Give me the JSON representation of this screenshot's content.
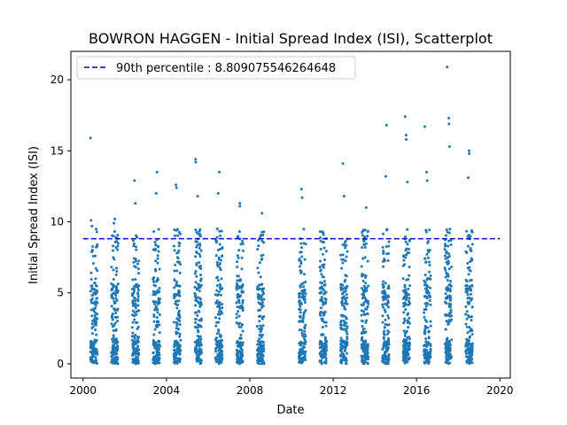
{
  "chart_data": {
    "type": "scatter",
    "title": "BOWRON HAGGEN - Initial Spread Index (ISI), Scatterplot",
    "xlabel": "Date",
    "ylabel": "Initial Spread Index (ISI)",
    "xlim": [
      "1999-06-01",
      "2020-07-01"
    ],
    "ylim": [
      -1.0,
      22.0
    ],
    "x_ticks": [
      "2000",
      "2004",
      "2008",
      "2012",
      "2016",
      "2020"
    ],
    "y_ticks": [
      "0",
      "5",
      "10",
      "15",
      "20"
    ],
    "legend": {
      "position": "top-left",
      "entries": [
        "90th percentile : 8.809075546264648"
      ]
    },
    "reference_line": {
      "name": "90th percentile : 8.809075546264648",
      "y": 8.809075546264648,
      "x_range": [
        "2000-01-01",
        "2020-01-01"
      ],
      "style": "dashed",
      "color": "#0000cc"
    },
    "series": [
      {
        "marker_color": "#1f77b4",
        "fire_seasons": [
          2000,
          2001,
          2002,
          2003,
          2004,
          2005,
          2006,
          2007,
          2008,
          2010,
          2011,
          2012,
          2013,
          2014,
          2015,
          2016,
          2017,
          2018
        ],
        "points": [
          {
            "x": "2000-05-10",
            "y": 15.9
          },
          {
            "x": "2000-05-20",
            "y": 10.1
          },
          {
            "x": "2000-06-05",
            "y": 9.7
          },
          {
            "x": "2001-07-10",
            "y": 10.2
          },
          {
            "x": "2001-06-25",
            "y": 9.9
          },
          {
            "x": "2002-06-20",
            "y": 12.9
          },
          {
            "x": "2002-07-05",
            "y": 11.3
          },
          {
            "x": "2003-07-20",
            "y": 13.5
          },
          {
            "x": "2003-07-05",
            "y": 12.0
          },
          {
            "x": "2004-06-15",
            "y": 12.6
          },
          {
            "x": "2004-06-25",
            "y": 12.4
          },
          {
            "x": "2005-05-25",
            "y": 14.4
          },
          {
            "x": "2005-05-28",
            "y": 14.2
          },
          {
            "x": "2005-07-01",
            "y": 11.8
          },
          {
            "x": "2006-07-15",
            "y": 13.5
          },
          {
            "x": "2006-06-25",
            "y": 12.0
          },
          {
            "x": "2007-07-10",
            "y": 11.3
          },
          {
            "x": "2007-07-12",
            "y": 11.1
          },
          {
            "x": "2008-08-01",
            "y": 10.6
          },
          {
            "x": "2010-06-25",
            "y": 12.3
          },
          {
            "x": "2010-07-05",
            "y": 11.7
          },
          {
            "x": "2011-07-10",
            "y": 9.2
          },
          {
            "x": "2012-06-20",
            "y": 14.1
          },
          {
            "x": "2012-07-10",
            "y": 11.8
          },
          {
            "x": "2013-08-01",
            "y": 11.0
          },
          {
            "x": "2014-07-25",
            "y": 16.8
          },
          {
            "x": "2014-07-10",
            "y": 13.2
          },
          {
            "x": "2015-06-15",
            "y": 17.4
          },
          {
            "x": "2015-07-01",
            "y": 16.1
          },
          {
            "x": "2015-07-05",
            "y": 15.8
          },
          {
            "x": "2015-07-25",
            "y": 12.8
          },
          {
            "x": "2016-05-25",
            "y": 16.7
          },
          {
            "x": "2016-06-25",
            "y": 13.5
          },
          {
            "x": "2016-07-05",
            "y": 12.9
          },
          {
            "x": "2017-06-20",
            "y": 20.9
          },
          {
            "x": "2017-07-20",
            "y": 17.3
          },
          {
            "x": "2017-07-22",
            "y": 16.9
          },
          {
            "x": "2017-08-01",
            "y": 15.3
          },
          {
            "x": "2018-07-10",
            "y": 15.0
          },
          {
            "x": "2018-07-12",
            "y": 14.8
          },
          {
            "x": "2018-06-25",
            "y": 13.1
          }
        ]
      }
    ]
  }
}
